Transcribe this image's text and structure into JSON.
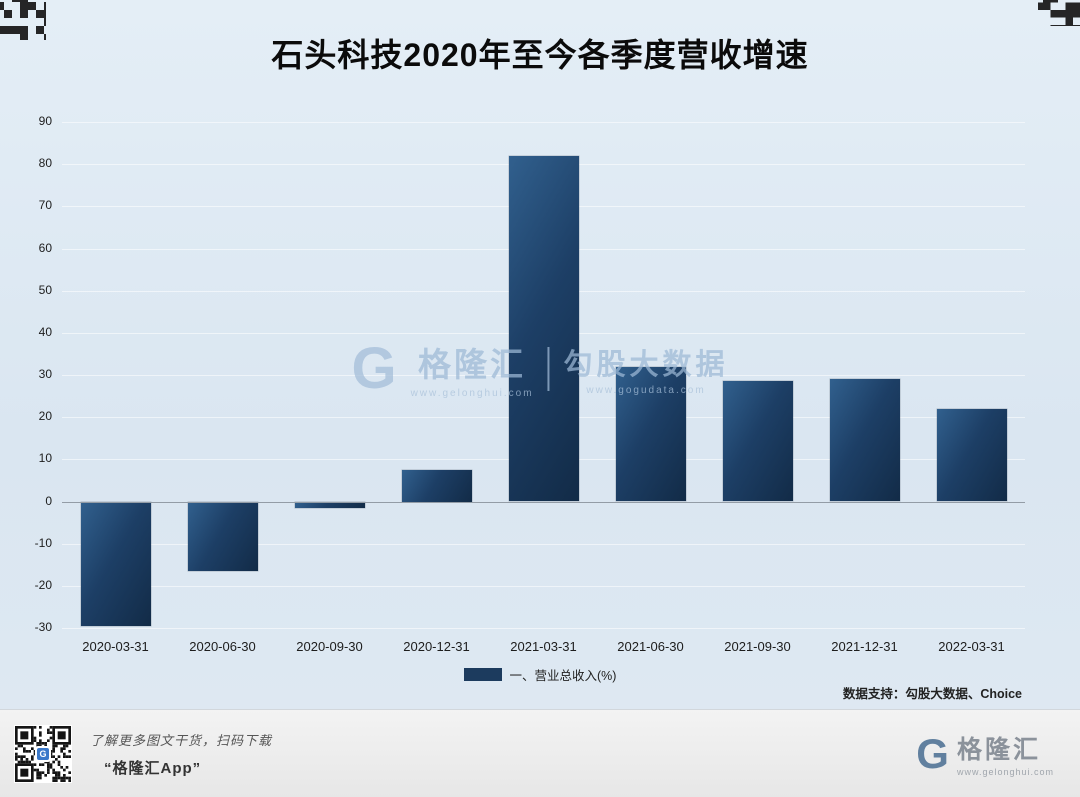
{
  "page": {
    "title": "石头科技2020年至今各季度营收增速",
    "data_support": "数据支持：勾股大数据、Choice"
  },
  "chart_data": {
    "type": "bar",
    "title": "石头科技2020年至今各季度营收增速",
    "categories": [
      "2020-03-31",
      "2020-06-30",
      "2020-09-30",
      "2020-12-31",
      "2021-03-31",
      "2021-06-30",
      "2021-09-30",
      "2021-12-31",
      "2022-03-31"
    ],
    "series": [
      {
        "name": "一、营业总收入(%)",
        "values": [
          -29.5,
          -16.5,
          -1.5,
          7.5,
          82,
          32,
          28.5,
          29,
          22
        ]
      }
    ],
    "xlabel": "",
    "ylabel": "",
    "ylim": [
      -30,
      90
    ],
    "ytick_step": 10,
    "grid": true,
    "legend_position": "bottom",
    "bar_color": "#1c3b5e",
    "background_color": "#dce7f1"
  },
  "watermark": {
    "logo_letter": "G",
    "logo_text": "格隆汇",
    "url_left": "www.gelonghui.com",
    "right_text": "勾股大数据",
    "url_right": "www.gogudata.com"
  },
  "footer": {
    "line1": "了解更多图文干货，扫码下载",
    "line2": "“格隆汇App”",
    "brand_letter": "G",
    "brand": "格隆汇",
    "brand_url": "www.gelonghui.com",
    "qr_logo_letter": "G"
  }
}
